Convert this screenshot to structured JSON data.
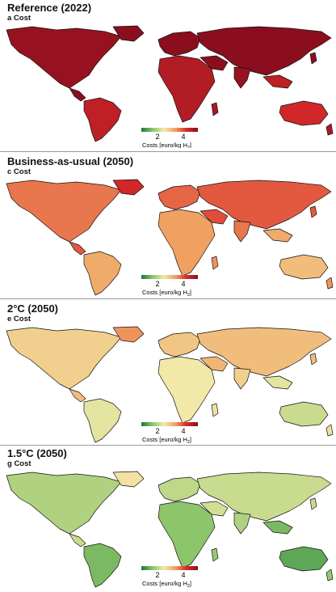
{
  "panels": [
    {
      "title": "Reference (2022)",
      "subtitle": "a Cost",
      "scenario_level": 0.92
    },
    {
      "title": "Business-as-usual (2050)",
      "subtitle": "c Cost",
      "scenario_level": 0.62
    },
    {
      "title": "2°C (2050)",
      "subtitle": "e Cost",
      "scenario_level": 0.42
    },
    {
      "title": "1.5°C (2050)",
      "subtitle": "g Cost",
      "scenario_level": 0.22
    }
  ],
  "legend": {
    "tick_2": "2",
    "tick_4": "4",
    "label_main": "Costs [euro/kg H",
    "label_sub": "2",
    "label_end": "]",
    "colors": [
      "#1a7a3a",
      "#8cc56a",
      "#f2e9a8",
      "#f0a060",
      "#d92a2a",
      "#8b0e1e"
    ]
  },
  "colors": {
    "ocean": "#ffffff",
    "border": "#111111",
    "grid": "#dddddd"
  }
}
